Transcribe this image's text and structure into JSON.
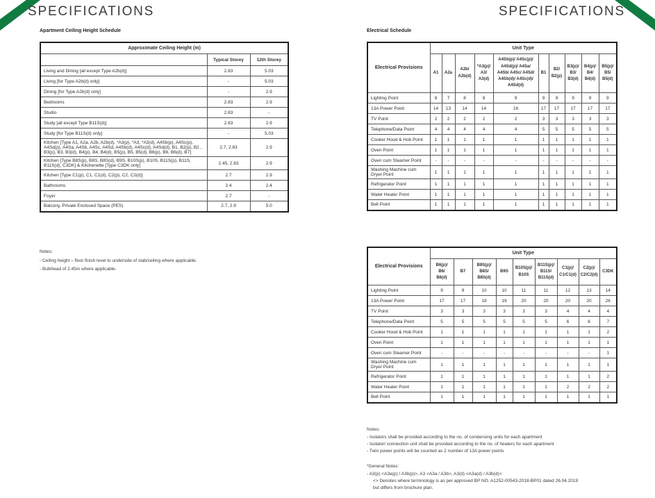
{
  "page": {
    "title_left": "SPECIFICATIONS",
    "title_right": "SPECIFICATIONS",
    "accent_color": "#107c41"
  },
  "ceiling": {
    "title": "Apartment Ceiling Height Schedule",
    "header": "Approximate Ceiling Height (m)",
    "columns": [
      "Typical Storey",
      "12th Storey"
    ],
    "rows": [
      {
        "label": "Living and Dining [all except Type A2b(d)]",
        "typical": "2.83",
        "twelfth": "5.03"
      },
      {
        "label": "Living [for Type A2b(d) only]",
        "typical": "-",
        "twelfth": "5.03"
      },
      {
        "label": "Dining [for Type A2b(d) only]",
        "typical": "-",
        "twelfth": "2.9"
      },
      {
        "label": "Bedrooms",
        "typical": "2.83",
        "twelfth": "2.9"
      },
      {
        "label": "Studio",
        "typical": "2.83",
        "twelfth": "-"
      },
      {
        "label": "Study [all except Type B11S(d)]",
        "typical": "2.83",
        "twelfth": "2.9"
      },
      {
        "label": "Study [for Type B11S(d) only]",
        "typical": "-",
        "twelfth": "5.03"
      },
      {
        "label": "Kitchen [Type A1, A2a, A2b, A2b(d), *A3(p), *A3, *A3(d), A4Sb(p), A4Sc(p), A4Sd(p), A4Sa, A4Sb, A4Sc, A4Sd, A4Sb(d), A4Sc(d), A4Sd(d), B1, B2(p), B2 , B3(p), B3, B3(d), B4(p), B4, B4(d), B5(p), B5, B5(d), B6(p), B6, B6(d), B7]",
        "typical": "2.7, 2.83",
        "twelfth": "2.9"
      },
      {
        "label": "Kitchen [Type B8S(p), B8S, B8S(d), B9S, B10S(p), B10S, B11S(p), B11S, B11S(d), C3DK] & Kitchenette [Type C3DK only]",
        "typical": "2.45, 2.83",
        "twelfth": "2.9"
      },
      {
        "label": "Kitchen [Type C1(p), C1, C1(d), C2(p), C2, C2(d)]",
        "typical": "2.7",
        "twelfth": "2.9"
      },
      {
        "label": "Bathrooms",
        "typical": "2.4",
        "twelfth": "2.4"
      },
      {
        "label": "Foyer",
        "typical": "2.7",
        "twelfth": "-"
      },
      {
        "label": "Balcony, Private Enclosed Space (PES)",
        "typical": "2.7, 2.9",
        "twelfth": "5.0"
      }
    ],
    "notes_title": "Notes:",
    "notes": [
      "-  Ceiling height – floor finish level to underside of slab/ceiling where applicable.",
      "-  Bulkhead of 2.45m where applicable."
    ]
  },
  "electrical": {
    "title": "Electrical Schedule",
    "tables": [
      {
        "corner_label": "Electrical Provisions",
        "group_header": "Unit Type",
        "unit_types": [
          "A1",
          "A2a",
          "A2b/\nA2b(d)",
          "*A3(p)/\nA3/\nA3(d)",
          "A4Sb(p)/ A4Sc(p)/\nA4Sd(p)/ A4Sa/\nA4Sb/ A4Sc/ A4Sd/\nA4Sb(d)/ A4Sc(d)/\nA4Sd(d)",
          "B1",
          "B2/\nB2(p)",
          "B3(p)/\nB3/\nB3(d)",
          "B4(p)/\nB4/\nB4(d)",
          "B5(p)/\nB5/\nB5(d)"
        ],
        "rows": [
          {
            "label": "Lighting Point",
            "values": [
              "8",
              "7",
              "8",
              "8",
              "9",
              "9",
              "9",
              "9",
              "9",
              "9"
            ]
          },
          {
            "label": "13A Power Point",
            "values": [
              "14",
              "13",
              "14",
              "14",
              "16",
              "17",
              "17",
              "17",
              "17",
              "17"
            ]
          },
          {
            "label": "TV Point",
            "values": [
              "2",
              "2",
              "2",
              "2",
              "2",
              "3",
              "3",
              "3",
              "3",
              "3"
            ]
          },
          {
            "label": "Telephone/Data Point",
            "values": [
              "4",
              "4",
              "4",
              "4",
              "4",
              "5",
              "5",
              "5",
              "5",
              "5"
            ]
          },
          {
            "label": "Cooker Hood & Hob Point",
            "values": [
              "1",
              "1",
              "1",
              "1",
              "1",
              "1",
              "1",
              "1",
              "1",
              "1"
            ]
          },
          {
            "label": "Oven Point",
            "values": [
              "1",
              "1",
              "1",
              "1",
              "1",
              "1",
              "1",
              "1",
              "1",
              "1"
            ]
          },
          {
            "label": "Oven cum Steamer Point",
            "values": [
              "-",
              "-",
              "-",
              "-",
              "-",
              "-",
              "-",
              "-",
              "-",
              "-"
            ]
          },
          {
            "label": "Washing Machine cum Dryer Point",
            "values": [
              "1",
              "1",
              "1",
              "1",
              "1",
              "1",
              "1",
              "1",
              "1",
              "1"
            ]
          },
          {
            "label": "Refrigerator Point",
            "values": [
              "1",
              "1",
              "1",
              "1",
              "1",
              "1",
              "1",
              "1",
              "1",
              "1"
            ]
          },
          {
            "label": "Water Heater Point",
            "values": [
              "1",
              "1",
              "1",
              "1",
              "1",
              "1",
              "1",
              "1",
              "1",
              "1"
            ]
          },
          {
            "label": "Bell Point",
            "values": [
              "1",
              "1",
              "1",
              "1",
              "1",
              "1",
              "1",
              "1",
              "1",
              "1"
            ]
          }
        ]
      },
      {
        "corner_label": "Electrical Provisions",
        "group_header": "Unit Type",
        "unit_types": [
          "B6(p)/\nB6/\nB6(d)",
          "B7",
          "B8S(p)/\nB8S/\nB8S(d)",
          "B9S",
          "B10S(p)/\nB10S",
          "B11S(p)/\nB11S/\nB11S(d)",
          "C1(p)/\nC1/C1(d)",
          "C2(p)/\nC2/C2(d)",
          "C3DK"
        ],
        "rows": [
          {
            "label": "Lighting Point",
            "values": [
              "9",
              "9",
              "10",
              "10",
              "11",
              "11",
              "12",
              "13",
              "14"
            ]
          },
          {
            "label": "13A Power Point",
            "values": [
              "17",
              "17",
              "19",
              "19",
              "20",
              "20",
              "20",
              "20",
              "26"
            ]
          },
          {
            "label": "TV Point",
            "values": [
              "3",
              "3",
              "3",
              "3",
              "3",
              "3",
              "4",
              "4",
              "4"
            ]
          },
          {
            "label": "Telephone/Data Point",
            "values": [
              "5",
              "5",
              "5",
              "5",
              "5",
              "5",
              "6",
              "6",
              "7"
            ]
          },
          {
            "label": "Cooker Hood & Hob Point",
            "values": [
              "1",
              "1",
              "1",
              "1",
              "1",
              "1",
              "1",
              "1",
              "2"
            ]
          },
          {
            "label": "Oven Point",
            "values": [
              "1",
              "1",
              "1",
              "1",
              "1",
              "1",
              "1",
              "1",
              "1"
            ]
          },
          {
            "label": "Oven cum Steamer Point",
            "values": [
              "-",
              "-",
              "-",
              "-",
              "-",
              "-",
              "-",
              "-",
              "1"
            ]
          },
          {
            "label": "Washing Machine cum Dryer Point",
            "values": [
              "1",
              "1",
              "1",
              "1",
              "1",
              "1",
              "1",
              "1",
              "1"
            ]
          },
          {
            "label": "Refrigerator Point",
            "values": [
              "1",
              "1",
              "1",
              "1",
              "1",
              "1",
              "1",
              "1",
              "2"
            ]
          },
          {
            "label": "Water Heater Point",
            "values": [
              "1",
              "1",
              "1",
              "1",
              "1",
              "1",
              "2",
              "2",
              "2"
            ]
          },
          {
            "label": "Bell Point",
            "values": [
              "1",
              "1",
              "1",
              "1",
              "1",
              "1",
              "1",
              "1",
              "1"
            ]
          }
        ]
      }
    ],
    "notes_title": "Notes:",
    "notes": [
      "-  Isolators shall be provided according to the no. of condensing units for each apartment",
      "-  Isolator/ connection unit shall be provided according to the no. of heaters for each apartment",
      "-  Twin power points will be counted as 2 number of 13A power points"
    ],
    "general_notes_title": "*General Notes:",
    "general_notes": [
      "-  A3(p) <A3a(p) / A3b(p)>, A3 <A3a / A3b>, A3(d) <A3a(d) / A3b(d)>:",
      "<> Denotes where terminology is as per approved BP NO. A1252-00543-2018-BP01 dated 26.04.2019",
      "but differs from brochure plan."
    ]
  }
}
